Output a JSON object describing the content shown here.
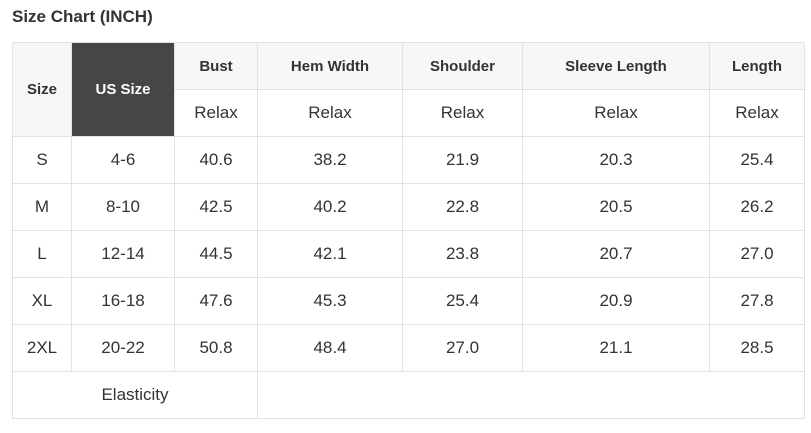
{
  "title": "Size Chart (INCH)",
  "headers": {
    "size": "Size",
    "us_size": "US Size",
    "bust": "Bust",
    "hem": "Hem Width",
    "shoulder": "Shoulder",
    "sleeve": "Sleeve Length",
    "length": "Length",
    "sub": "Relax"
  },
  "rows": [
    [
      "S",
      "4-6",
      "40.6",
      "38.2",
      "21.9",
      "20.3",
      "25.4"
    ],
    [
      "M",
      "8-10",
      "42.5",
      "40.2",
      "22.8",
      "20.5",
      "26.2"
    ],
    [
      "L",
      "12-14",
      "44.5",
      "42.1",
      "23.8",
      "20.7",
      "27.0"
    ],
    [
      "XL",
      "16-18",
      "47.6",
      "45.3",
      "25.4",
      "20.9",
      "27.8"
    ],
    [
      "2XL",
      "20-22",
      "50.8",
      "48.4",
      "27.0",
      "21.1",
      "28.5"
    ]
  ],
  "elasticity": "Elasticity",
  "colors": {
    "us_header_bg": "#464646",
    "header_bg": "#f7f7f7",
    "border": "#e2e2e2"
  }
}
